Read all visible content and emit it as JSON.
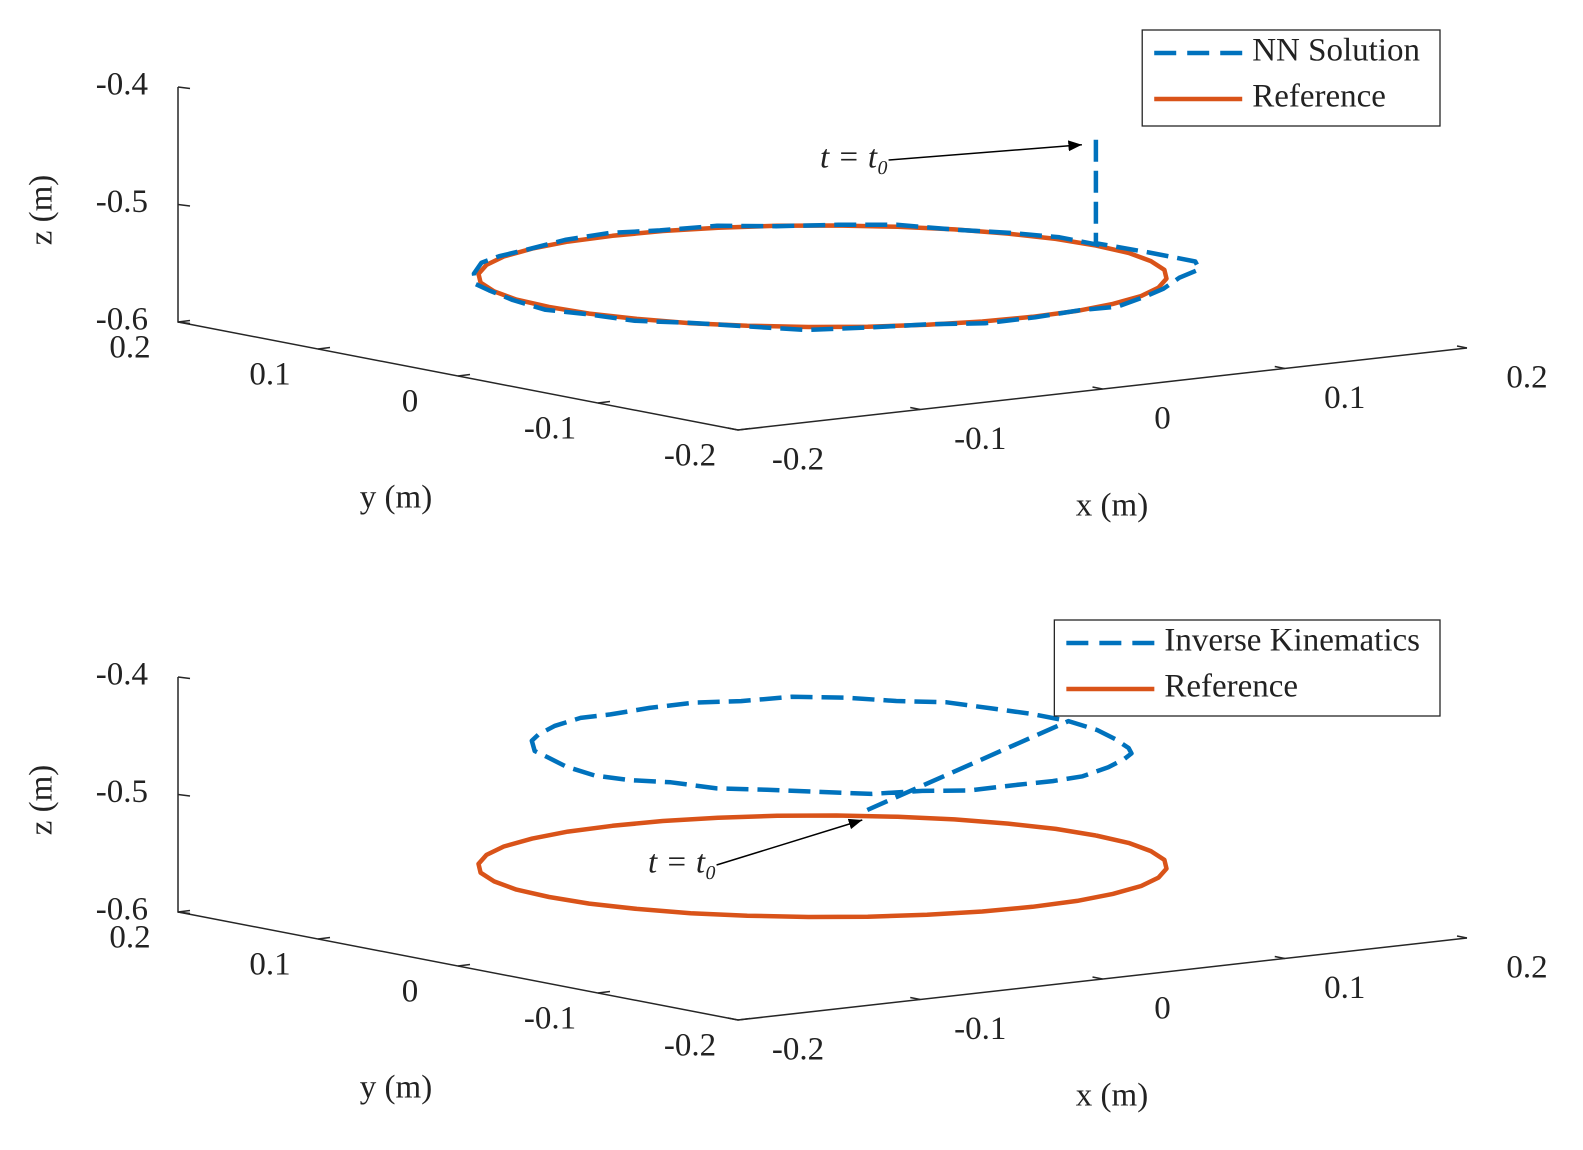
{
  "chart_data": [
    {
      "type": "line3d",
      "xlabel": "x (m)",
      "ylabel": "y (m)",
      "zlabel": "z (m)",
      "xlim": [
        -0.2,
        0.2
      ],
      "ylim": [
        -0.2,
        0.2
      ],
      "zlim": [
        -0.6,
        -0.4
      ],
      "xticks": [
        -0.2,
        -0.1,
        0,
        0.1,
        0.2
      ],
      "yticks": [
        -0.2,
        -0.1,
        0,
        0.1,
        0.2
      ],
      "zticks": [
        -0.6,
        -0.5,
        -0.4
      ],
      "legend": "northeast",
      "annotation": "t = t₀",
      "series": [
        {
          "name": "NN Solution",
          "color": "#0072BD",
          "linestyle": "dashed",
          "x": [
            0.15,
            0.15,
            0.158,
            0.16,
            0.143,
            0.119,
            0.098,
            0.076,
            0.052,
            0.026,
            0,
            -0.026,
            -0.052,
            -0.076,
            -0.098,
            -0.116,
            -0.132,
            -0.143,
            -0.15,
            -0.152,
            -0.15,
            -0.143,
            -0.132,
            -0.116,
            -0.098,
            -0.076,
            -0.052,
            -0.026,
            0,
            0.026,
            0.052,
            0.076,
            0.098,
            0.116,
            0.132,
            0.143,
            0.15,
            0.152
          ],
          "y": [
            0,
            0,
            -0.028,
            -0.058,
            -0.083,
            -0.1,
            -0.116,
            -0.132,
            -0.143,
            -0.15,
            -0.152,
            -0.15,
            -0.143,
            -0.132,
            -0.116,
            -0.098,
            -0.076,
            -0.052,
            -0.026,
            0,
            0.026,
            0.052,
            0.076,
            0.098,
            0.116,
            0.132,
            0.143,
            0.15,
            0.152,
            0.15,
            0.143,
            0.132,
            0.116,
            0.098,
            0.076,
            0.052,
            0.026,
            0
          ],
          "z": [
            -0.46,
            -0.548,
            -0.551,
            -0.552,
            -0.55,
            -0.549,
            -0.551,
            -0.55,
            -0.552,
            -0.549,
            -0.55,
            -0.551,
            -0.549,
            -0.55,
            -0.552,
            -0.55,
            -0.549,
            -0.551,
            -0.55,
            -0.552,
            -0.55,
            -0.549,
            -0.551,
            -0.55,
            -0.548,
            -0.55,
            -0.551,
            -0.549,
            -0.548,
            -0.55,
            -0.549,
            -0.551,
            -0.55,
            -0.549,
            -0.551,
            -0.55,
            -0.549,
            -0.55
          ]
        },
        {
          "name": "Reference",
          "color": "#D95319",
          "linestyle": "solid",
          "x": [
            0.15,
            0.148,
            0.141,
            0.13,
            0.115,
            0.096,
            0.075,
            0.051,
            0.026,
            0,
            -0.026,
            -0.051,
            -0.075,
            -0.096,
            -0.115,
            -0.13,
            -0.141,
            -0.148,
            -0.15,
            -0.148,
            -0.141,
            -0.13,
            -0.115,
            -0.096,
            -0.075,
            -0.051,
            -0.026,
            0,
            0.026,
            0.051,
            0.075,
            0.096,
            0.115,
            0.13,
            0.141,
            0.148,
            0.15
          ],
          "y": [
            0,
            0.026,
            0.051,
            0.075,
            0.096,
            0.115,
            0.13,
            0.141,
            0.148,
            0.15,
            0.148,
            0.141,
            0.13,
            0.115,
            0.096,
            0.075,
            0.051,
            0.026,
            0,
            -0.026,
            -0.051,
            -0.075,
            -0.096,
            -0.115,
            -0.13,
            -0.141,
            -0.148,
            -0.15,
            -0.148,
            -0.141,
            -0.13,
            -0.115,
            -0.096,
            -0.075,
            -0.051,
            -0.026,
            0
          ],
          "z": [
            -0.55,
            -0.55,
            -0.55,
            -0.55,
            -0.55,
            -0.55,
            -0.55,
            -0.55,
            -0.55,
            -0.55,
            -0.55,
            -0.55,
            -0.55,
            -0.55,
            -0.55,
            -0.55,
            -0.55,
            -0.55,
            -0.55,
            -0.55,
            -0.55,
            -0.55,
            -0.55,
            -0.55,
            -0.55,
            -0.55,
            -0.55,
            -0.55,
            -0.55,
            -0.55,
            -0.55,
            -0.55,
            -0.55,
            -0.55,
            -0.55,
            -0.55,
            -0.55
          ]
        }
      ]
    },
    {
      "type": "line3d",
      "xlabel": "x (m)",
      "ylabel": "y (m)",
      "zlabel": "z (m)",
      "xlim": [
        -0.2,
        0.2
      ],
      "ylim": [
        -0.2,
        0.2
      ],
      "zlim": [
        -0.6,
        -0.4
      ],
      "xticks": [
        -0.2,
        -0.1,
        0,
        0.1,
        0.2
      ],
      "yticks": [
        -0.2,
        -0.1,
        0,
        0.1,
        0.2
      ],
      "zticks": [
        -0.6,
        -0.5,
        -0.4
      ],
      "legend": "northeast",
      "annotation": "t = t₀",
      "series": [
        {
          "name": "Inverse Kinematics",
          "color": "#0072BD",
          "linestyle": "dashed",
          "x": [
            0.106,
            0.135,
            0.133,
            0.127,
            0.118,
            0.105,
            0.089,
            0.07,
            0.049,
            0.028,
            0.005,
            -0.018,
            -0.039,
            -0.06,
            -0.079,
            -0.095,
            -0.108,
            -0.117,
            -0.123,
            -0.125,
            -0.123,
            -0.117,
            -0.108,
            -0.095,
            -0.079,
            -0.06,
            -0.039,
            -0.018,
            0.005,
            0.028,
            0.049,
            0.07,
            0.089,
            0.105,
            0.118,
            0.127,
            0.133,
            0.135
          ],
          "y": [
            0.106,
            0,
            -0.023,
            -0.044,
            -0.065,
            -0.084,
            -0.1,
            -0.113,
            -0.122,
            -0.128,
            -0.13,
            -0.128,
            -0.122,
            -0.113,
            -0.1,
            -0.084,
            -0.065,
            -0.044,
            -0.023,
            0,
            0.023,
            0.044,
            0.065,
            0.084,
            0.1,
            0.113,
            0.122,
            0.128,
            0.13,
            0.128,
            0.122,
            0.113,
            0.1,
            0.084,
            0.065,
            0.044,
            0.023,
            0
          ],
          "z": [
            -0.545,
            -0.45,
            -0.452,
            -0.454,
            -0.455,
            -0.453,
            -0.451,
            -0.452,
            -0.454,
            -0.453,
            -0.452,
            -0.453,
            -0.451,
            -0.452,
            -0.45,
            -0.449,
            -0.45,
            -0.448,
            -0.45,
            -0.451,
            -0.449,
            -0.447,
            -0.448,
            -0.446,
            -0.447,
            -0.446,
            -0.445,
            -0.447,
            -0.446,
            -0.445,
            -0.446,
            -0.444,
            -0.445,
            -0.447,
            -0.446,
            -0.448,
            -0.449,
            -0.45
          ]
        },
        {
          "name": "Reference",
          "color": "#D95319",
          "linestyle": "solid",
          "x": [
            0.15,
            0.148,
            0.141,
            0.13,
            0.115,
            0.096,
            0.075,
            0.051,
            0.026,
            0,
            -0.026,
            -0.051,
            -0.075,
            -0.096,
            -0.115,
            -0.13,
            -0.141,
            -0.148,
            -0.15,
            -0.148,
            -0.141,
            -0.13,
            -0.115,
            -0.096,
            -0.075,
            -0.051,
            -0.026,
            0,
            0.026,
            0.051,
            0.075,
            0.096,
            0.115,
            0.13,
            0.141,
            0.148,
            0.15
          ],
          "y": [
            0,
            0.026,
            0.051,
            0.075,
            0.096,
            0.115,
            0.13,
            0.141,
            0.148,
            0.15,
            0.148,
            0.141,
            0.13,
            0.115,
            0.096,
            0.075,
            0.051,
            0.026,
            0,
            -0.026,
            -0.051,
            -0.075,
            -0.096,
            -0.115,
            -0.13,
            -0.141,
            -0.148,
            -0.15,
            -0.148,
            -0.141,
            -0.13,
            -0.115,
            -0.096,
            -0.075,
            -0.051,
            -0.026,
            0
          ],
          "z": [
            -0.55,
            -0.55,
            -0.55,
            -0.55,
            -0.55,
            -0.55,
            -0.55,
            -0.55,
            -0.55,
            -0.55,
            -0.55,
            -0.55,
            -0.55,
            -0.55,
            -0.55,
            -0.55,
            -0.55,
            -0.55,
            -0.55,
            -0.55,
            -0.55,
            -0.55,
            -0.55,
            -0.55,
            -0.55,
            -0.55,
            -0.55,
            -0.55,
            -0.55,
            -0.55,
            -0.55,
            -0.55,
            -0.55,
            -0.55,
            -0.55,
            -0.55,
            -0.55
          ]
        }
      ]
    }
  ]
}
